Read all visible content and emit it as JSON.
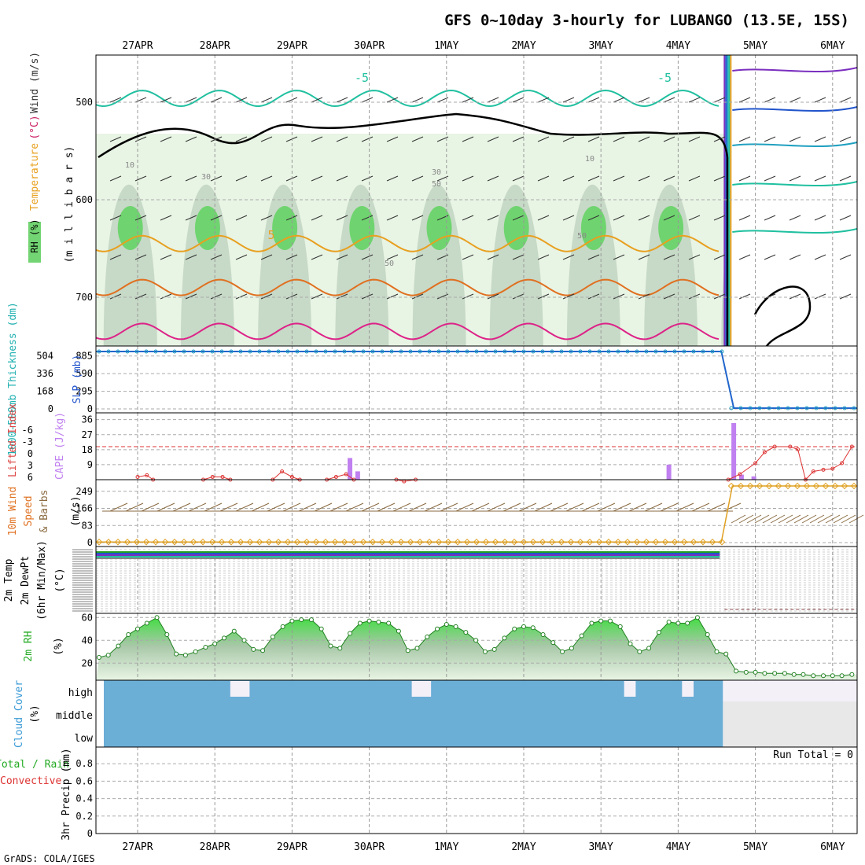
{
  "title": "GFS 0~10day 3-hourly for LUBANGO (13.5E, 15S)",
  "credit": "GrADS: COLA/IGES",
  "dates": [
    "27APR",
    "28APR",
    "29APR",
    "30APR",
    "1MAY",
    "2MAY",
    "3MAY",
    "4MAY",
    "5MAY",
    "6MAY"
  ],
  "chart_data": [
    {
      "type": "heatmap",
      "name_panel": "upper-air",
      "ylabel_parts": [
        {
          "text": "RH (%)",
          "color": "#22aa22"
        },
        {
          "text": "Temperature",
          "color": "#e8a020"
        },
        {
          "text": "(°C)",
          "color": "#cc2266"
        },
        {
          "text": "Wind (m/s)",
          "color": "#333333"
        }
      ],
      "ylabel_units": "(m i l l i b a r s)",
      "yticks": [
        500,
        600,
        700
      ],
      "ylim": [
        450,
        750
      ],
      "contour_labels": [
        "-5",
        "-5",
        "5",
        "10",
        "10",
        "30",
        "30",
        "50",
        "50",
        "50"
      ],
      "temperature_curves": [
        {
          "level_mb": 496,
          "color": "#20c0a0",
          "before_drop": true
        },
        {
          "level_mb": 645,
          "color": "#e8a020",
          "before_drop": true
        },
        {
          "level_mb": 690,
          "color": "#e07020",
          "before_drop": true
        },
        {
          "level_mb": 735,
          "color": "#dd2288",
          "before_drop": true
        }
      ]
    },
    {
      "type": "line",
      "name_panel": "thickness-slp",
      "ylabel": "1000-500mb Thickness (dm)",
      "ylabel2": "SLP (mb)",
      "yticks_left": [
        0,
        168,
        336,
        504
      ],
      "yticks_right": [
        0,
        295,
        590,
        885
      ],
      "ylim": [
        0,
        1000
      ],
      "series": [
        {
          "name": "SLP",
          "color": "#2266cc",
          "before": 1000,
          "after": 2
        }
      ]
    },
    {
      "type": "bar",
      "name_panel": "cape-li",
      "ylabel": "Lifted Index",
      "ylabel2": "CAPE (J/kg)",
      "yticks_left": [
        "-6",
        "-3",
        "0",
        "3",
        "6"
      ],
      "yticks_right": [
        9,
        18,
        27,
        36
      ],
      "cape_bars": [
        {
          "day": 2.75,
          "value": 13
        },
        {
          "day": 2.85,
          "value": 5
        },
        {
          "day": 6.88,
          "value": 9
        },
        {
          "day": 7.72,
          "value": 34
        },
        {
          "day": 7.82,
          "value": 3
        },
        {
          "day": 7.98,
          "value": 2
        }
      ],
      "lifted_index": [
        {
          "day": 0.0,
          "value": 5.5
        },
        {
          "day": 0.12,
          "value": 5.2
        },
        {
          "day": 0.2,
          "value": 6
        },
        {
          "day": 0.85,
          "value": 6
        },
        {
          "day": 0.97,
          "value": 5.5
        },
        {
          "day": 1.1,
          "value": 5.5
        },
        {
          "day": 1.2,
          "value": 6
        },
        {
          "day": 1.75,
          "value": 6
        },
        {
          "day": 1.87,
          "value": 4.5
        },
        {
          "day": 2.0,
          "value": 5.5
        },
        {
          "day": 2.1,
          "value": 6
        },
        {
          "day": 2.45,
          "value": 6
        },
        {
          "day": 2.57,
          "value": 5.5
        },
        {
          "day": 2.7,
          "value": 5
        },
        {
          "day": 2.8,
          "value": 6
        },
        {
          "day": 3.35,
          "value": 6
        },
        {
          "day": 3.45,
          "value": 6.3
        },
        {
          "day": 3.6,
          "value": 6
        },
        {
          "day": 7.65,
          "value": 6
        },
        {
          "day": 7.8,
          "value": 5
        },
        {
          "day": 8.0,
          "value": 3
        },
        {
          "day": 8.12,
          "value": 1
        },
        {
          "day": 8.25,
          "value": 0
        },
        {
          "day": 8.45,
          "value": 0
        },
        {
          "day": 8.55,
          "value": 0.5
        },
        {
          "day": 8.65,
          "value": 6
        },
        {
          "day": 8.75,
          "value": 4.5
        },
        {
          "day": 8.88,
          "value": 4.2
        },
        {
          "day": 9.0,
          "value": 4
        },
        {
          "day": 9.12,
          "value": 3
        },
        {
          "day": 9.25,
          "value": 0
        }
      ]
    },
    {
      "type": "line",
      "name_panel": "wind-10m",
      "ylabel": "10m Wind Speed & Barbs (m/s)",
      "yticks": [
        0,
        83,
        166,
        249
      ],
      "ylim": [
        0,
        290
      ],
      "series": [
        {
          "name": "Wind Speed",
          "color": "#e0a020",
          "before": 3,
          "after": 275
        }
      ]
    },
    {
      "type": "line",
      "name_panel": "temp-2m",
      "ylabel": "2m Temp 2m DewPt (6hr Min/Max) (°C)",
      "ylim": [
        0,
        1
      ]
    },
    {
      "type": "area",
      "name_panel": "rh-2m",
      "ylabel": "2m RH (%)",
      "yticks": [
        20,
        40,
        60
      ],
      "ylim": [
        5,
        62
      ],
      "points": [
        {
          "day": -0.5,
          "value": 25
        },
        {
          "day": -0.38,
          "value": 27
        },
        {
          "day": -0.25,
          "value": 35
        },
        {
          "day": -0.12,
          "value": 45
        },
        {
          "day": 0.0,
          "value": 50
        },
        {
          "day": 0.12,
          "value": 55
        },
        {
          "day": 0.25,
          "value": 60
        },
        {
          "day": 0.38,
          "value": 45
        },
        {
          "day": 0.5,
          "value": 28
        },
        {
          "day": 0.62,
          "value": 27
        },
        {
          "day": 0.75,
          "value": 30
        },
        {
          "day": 0.88,
          "value": 34
        },
        {
          "day": 1.0,
          "value": 37
        },
        {
          "day": 1.12,
          "value": 42
        },
        {
          "day": 1.25,
          "value": 48
        },
        {
          "day": 1.38,
          "value": 40
        },
        {
          "day": 1.5,
          "value": 32
        },
        {
          "day": 1.62,
          "value": 31
        },
        {
          "day": 1.75,
          "value": 43
        },
        {
          "day": 1.88,
          "value": 52
        },
        {
          "day": 2.0,
          "value": 57
        },
        {
          "day": 2.12,
          "value": 58
        },
        {
          "day": 2.25,
          "value": 58
        },
        {
          "day": 2.38,
          "value": 50
        },
        {
          "day": 2.5,
          "value": 35
        },
        {
          "day": 2.62,
          "value": 33
        },
        {
          "day": 2.75,
          "value": 46
        },
        {
          "day": 2.88,
          "value": 55
        },
        {
          "day": 3.0,
          "value": 57
        },
        {
          "day": 3.12,
          "value": 56
        },
        {
          "day": 3.25,
          "value": 55
        },
        {
          "day": 3.38,
          "value": 48
        },
        {
          "day": 3.5,
          "value": 31
        },
        {
          "day": 3.62,
          "value": 33
        },
        {
          "day": 3.75,
          "value": 43
        },
        {
          "day": 3.88,
          "value": 50
        },
        {
          "day": 4.0,
          "value": 54
        },
        {
          "day": 4.12,
          "value": 52
        },
        {
          "day": 4.25,
          "value": 47
        },
        {
          "day": 4.38,
          "value": 40
        },
        {
          "day": 4.5,
          "value": 30
        },
        {
          "day": 4.62,
          "value": 32
        },
        {
          "day": 4.75,
          "value": 42
        },
        {
          "day": 4.88,
          "value": 50
        },
        {
          "day": 5.0,
          "value": 52
        },
        {
          "day": 5.12,
          "value": 51
        },
        {
          "day": 5.25,
          "value": 45
        },
        {
          "day": 5.38,
          "value": 38
        },
        {
          "day": 5.5,
          "value": 30
        },
        {
          "day": 5.62,
          "value": 33
        },
        {
          "day": 5.75,
          "value": 44
        },
        {
          "day": 5.88,
          "value": 55
        },
        {
          "day": 6.0,
          "value": 57
        },
        {
          "day": 6.12,
          "value": 57
        },
        {
          "day": 6.25,
          "value": 52
        },
        {
          "day": 6.38,
          "value": 37
        },
        {
          "day": 6.5,
          "value": 30
        },
        {
          "day": 6.62,
          "value": 33
        },
        {
          "day": 6.75,
          "value": 47
        },
        {
          "day": 6.88,
          "value": 56
        },
        {
          "day": 7.0,
          "value": 55
        },
        {
          "day": 7.12,
          "value": 55
        },
        {
          "day": 7.25,
          "value": 60
        },
        {
          "day": 7.38,
          "value": 45
        },
        {
          "day": 7.5,
          "value": 30
        },
        {
          "day": 7.62,
          "value": 28
        },
        {
          "day": 7.75,
          "value": 13
        },
        {
          "day": 7.88,
          "value": 12
        },
        {
          "day": 8.0,
          "value": 12
        },
        {
          "day": 8.12,
          "value": 11
        },
        {
          "day": 8.25,
          "value": 11
        },
        {
          "day": 8.38,
          "value": 11
        },
        {
          "day": 8.5,
          "value": 10
        },
        {
          "day": 8.62,
          "value": 10
        },
        {
          "day": 8.75,
          "value": 9
        },
        {
          "day": 8.88,
          "value": 9
        },
        {
          "day": 9.0,
          "value": 9
        },
        {
          "day": 9.12,
          "value": 9
        },
        {
          "day": 9.25,
          "value": 10
        },
        {
          "day": 9.38,
          "value": 10
        }
      ]
    },
    {
      "type": "area",
      "name_panel": "cloud-cover",
      "ylabel": "Cloud Cover (%)",
      "ytick_labels": [
        "high",
        "middle",
        "low"
      ],
      "fill_color": "#6baed6",
      "fill_until_day": 7.58,
      "gaps": [
        {
          "day_start": 1.2,
          "day_end": 1.45,
          "layer": "high"
        },
        {
          "day_start": 3.55,
          "day_end": 3.8,
          "layer": "high"
        },
        {
          "day_start": 6.3,
          "day_end": 6.45,
          "layer": "high"
        },
        {
          "day_start": 7.05,
          "day_end": 7.2,
          "layer": "high"
        }
      ]
    },
    {
      "type": "bar",
      "name_panel": "precip",
      "ylabel_parts": [
        {
          "text": "Total / Rain",
          "color": "#22aa22"
        },
        {
          "text": "Convective",
          "color": "#dd3333"
        }
      ],
      "ylabel": "3hr Precip (mm)",
      "yticks": [
        "0",
        "0.2",
        "0.4",
        "0.6",
        "0.8"
      ],
      "ylim": [
        0,
        1
      ],
      "annotation": "Run Total = 0",
      "values": []
    }
  ]
}
